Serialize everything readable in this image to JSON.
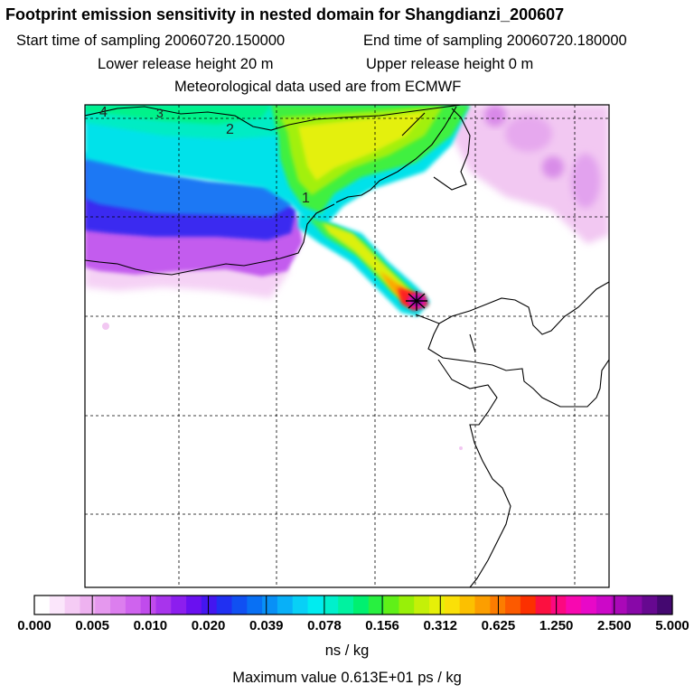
{
  "title": "Footprint emission sensitivity in nested domain for Shangdianzi_200607",
  "subtitle": {
    "start": "Start time of sampling 20060720.150000",
    "end": "End time of sampling 20060720.180000",
    "lower": "Lower release height   20 m",
    "upper": "Upper release height    0 m",
    "met": "Meteorological data used are from ECMWF"
  },
  "map": {
    "contour_labels": [
      "4",
      "3",
      "2",
      "1"
    ],
    "release_point_marker": "cross-icon"
  },
  "colorbar": {
    "tick_labels": [
      "0.000",
      "0.005",
      "0.010",
      "0.020",
      "0.039",
      "0.078",
      "0.156",
      "0.312",
      "0.625",
      "1.250",
      "2.500",
      "5.000"
    ],
    "colors": [
      "#ffffff",
      "#fbe6fb",
      "#f5ccf5",
      "#eeb2f0",
      "#e598ee",
      "#dc7eee",
      "#cf63ee",
      "#c04bec",
      "#a834ec",
      "#8c1eee",
      "#6a10f0",
      "#4416f0",
      "#2030f2",
      "#1050f2",
      "#0870f4",
      "#0890f6",
      "#08b0f8",
      "#08d0f6",
      "#00ecf0",
      "#00f0cc",
      "#00f2a0",
      "#00f070",
      "#28f040",
      "#60f018",
      "#98f008",
      "#c4f008",
      "#e6f008",
      "#fae008",
      "#fcc000",
      "#fc9e00",
      "#fc7c00",
      "#fc5a00",
      "#fc3000",
      "#fc1040",
      "#fc0880",
      "#f808b0",
      "#e808c8",
      "#cc08c8",
      "#aa08b8",
      "#8808a8",
      "#660890",
      "#440870"
    ],
    "unit": "ns / kg"
  },
  "max_value": "Maximum value  0.613E+01 ps / kg"
}
